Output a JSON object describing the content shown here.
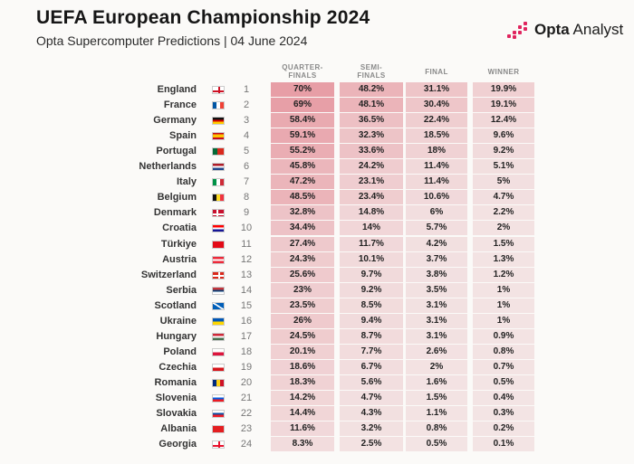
{
  "header": {
    "title": "UEFA European Championship 2024",
    "subtitle": "Opta Supercomputer Predictions | 04 June 2024",
    "logo_text_bold": "Opta",
    "logo_text_light": " Analyst"
  },
  "colors": {
    "accent": "#e0245e",
    "cell_base": "#f3e4e4",
    "cell_max": "#e79ea6"
  },
  "chart_data": {
    "type": "table",
    "columns": [
      "QUARTER-FINALS",
      "SEMI-FINALS",
      "FINAL",
      "WINNER"
    ],
    "rows": [
      {
        "team": "England",
        "flag": "england",
        "rank": "1",
        "values": [
          "70%",
          "48.2%",
          "31.1%",
          "19.9%"
        ]
      },
      {
        "team": "France",
        "flag": "france",
        "rank": "2",
        "values": [
          "69%",
          "48.1%",
          "30.4%",
          "19.1%"
        ]
      },
      {
        "team": "Germany",
        "flag": "germany",
        "rank": "3",
        "values": [
          "58.4%",
          "36.5%",
          "22.4%",
          "12.4%"
        ]
      },
      {
        "team": "Spain",
        "flag": "spain",
        "rank": "4",
        "values": [
          "59.1%",
          "32.3%",
          "18.5%",
          "9.6%"
        ]
      },
      {
        "team": "Portugal",
        "flag": "portugal",
        "rank": "5",
        "values": [
          "55.2%",
          "33.6%",
          "18%",
          "9.2%"
        ]
      },
      {
        "team": "Netherlands",
        "flag": "netherlands",
        "rank": "6",
        "values": [
          "45.8%",
          "24.2%",
          "11.4%",
          "5.1%"
        ]
      },
      {
        "team": "Italy",
        "flag": "italy",
        "rank": "7",
        "values": [
          "47.2%",
          "23.1%",
          "11.4%",
          "5%"
        ]
      },
      {
        "team": "Belgium",
        "flag": "belgium",
        "rank": "8",
        "values": [
          "48.5%",
          "23.4%",
          "10.6%",
          "4.7%"
        ]
      },
      {
        "team": "Denmark",
        "flag": "denmark",
        "rank": "9",
        "values": [
          "32.8%",
          "14.8%",
          "6%",
          "2.2%"
        ]
      },
      {
        "team": "Croatia",
        "flag": "croatia",
        "rank": "10",
        "values": [
          "34.4%",
          "14%",
          "5.7%",
          "2%"
        ]
      },
      {
        "team": "Türkiye",
        "flag": "turkiye",
        "rank": "11",
        "values": [
          "27.4%",
          "11.7%",
          "4.2%",
          "1.5%"
        ]
      },
      {
        "team": "Austria",
        "flag": "austria",
        "rank": "12",
        "values": [
          "24.3%",
          "10.1%",
          "3.7%",
          "1.3%"
        ]
      },
      {
        "team": "Switzerland",
        "flag": "switzerland",
        "rank": "13",
        "values": [
          "25.6%",
          "9.7%",
          "3.8%",
          "1.2%"
        ]
      },
      {
        "team": "Serbia",
        "flag": "serbia",
        "rank": "14",
        "values": [
          "23%",
          "9.2%",
          "3.5%",
          "1%"
        ]
      },
      {
        "team": "Scotland",
        "flag": "scotland",
        "rank": "15",
        "values": [
          "23.5%",
          "8.5%",
          "3.1%",
          "1%"
        ]
      },
      {
        "team": "Ukraine",
        "flag": "ukraine",
        "rank": "16",
        "values": [
          "26%",
          "9.4%",
          "3.1%",
          "1%"
        ]
      },
      {
        "team": "Hungary",
        "flag": "hungary",
        "rank": "17",
        "values": [
          "24.5%",
          "8.7%",
          "3.1%",
          "0.9%"
        ]
      },
      {
        "team": "Poland",
        "flag": "poland",
        "rank": "18",
        "values": [
          "20.1%",
          "7.7%",
          "2.6%",
          "0.8%"
        ]
      },
      {
        "team": "Czechia",
        "flag": "czechia",
        "rank": "19",
        "values": [
          "18.6%",
          "6.7%",
          "2%",
          "0.7%"
        ]
      },
      {
        "team": "Romania",
        "flag": "romania",
        "rank": "20",
        "values": [
          "18.3%",
          "5.6%",
          "1.6%",
          "0.5%"
        ]
      },
      {
        "team": "Slovenia",
        "flag": "slovenia",
        "rank": "21",
        "values": [
          "14.2%",
          "4.7%",
          "1.5%",
          "0.4%"
        ]
      },
      {
        "team": "Slovakia",
        "flag": "slovakia",
        "rank": "22",
        "values": [
          "14.4%",
          "4.3%",
          "1.1%",
          "0.3%"
        ]
      },
      {
        "team": "Albania",
        "flag": "albania",
        "rank": "23",
        "values": [
          "11.6%",
          "3.2%",
          "0.8%",
          "0.2%"
        ]
      },
      {
        "team": "Georgia",
        "flag": "georgia",
        "rank": "24",
        "values": [
          "8.3%",
          "2.5%",
          "0.5%",
          "0.1%"
        ]
      }
    ]
  }
}
